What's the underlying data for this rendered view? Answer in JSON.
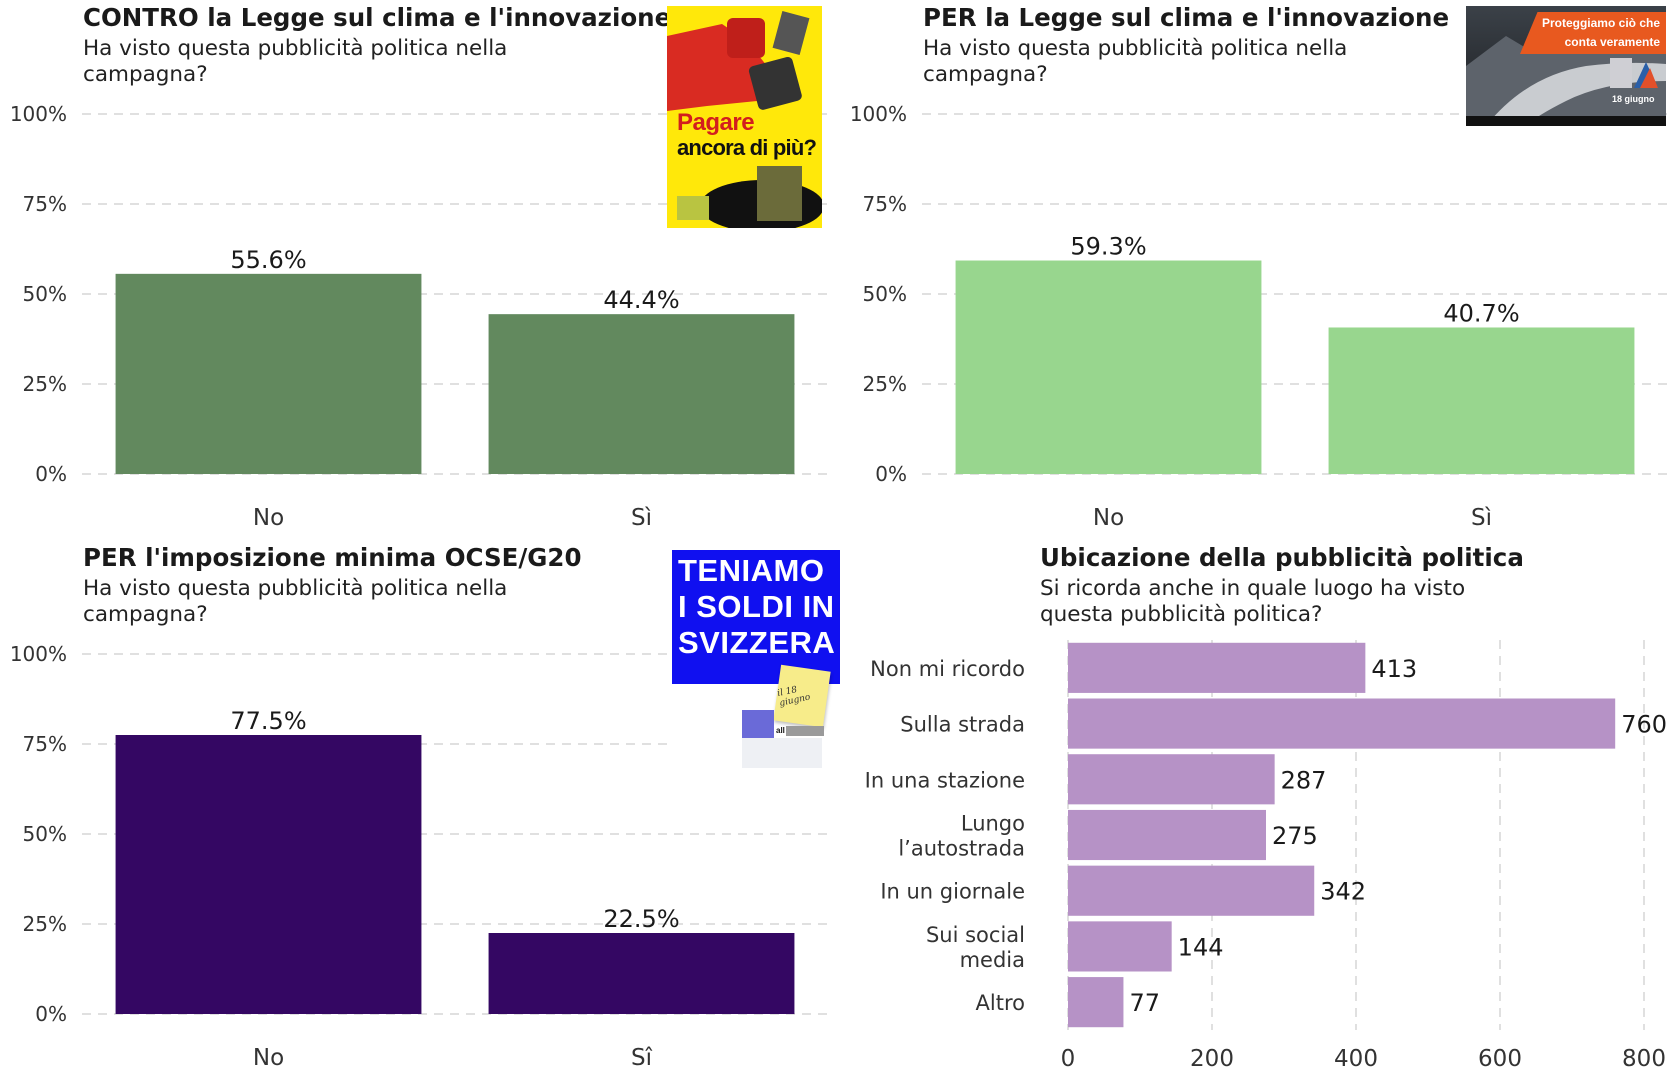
{
  "charts": [
    {
      "id": "contro",
      "title": "CONTRO la Legge sul clima e l'innovazione",
      "subtitle": "Ha visto questa pubblicità politica nella campagna?",
      "poster_text": [
        "Pagare",
        "ancora di più?"
      ],
      "color": "#62895e"
    },
    {
      "id": "per-clima",
      "title": "PER la Legge sul clima e l'innovazione",
      "subtitle": "Ha visto questa pubblicità politica nella campagna?",
      "poster_text": [
        "Proteggiamo ciò che",
        "conta veramente",
        "18 giugno"
      ],
      "color": "#98d68e"
    },
    {
      "id": "per-ocse",
      "title": "PER l'imposizione minima OCSE/G20",
      "subtitle": "Ha visto questa pubblicità politica nella campagna?",
      "poster_text": [
        "TENIAMO",
        "I SOLDI IN",
        "SVIZZERA",
        "il 18 giugno",
        "all"
      ],
      "color": "#340763"
    },
    {
      "id": "ubicazione",
      "title": "Ubicazione della pubblicità politica",
      "subtitle": "Si ricorda anche in quale luogo ha visto questa pubblicità politica?",
      "color": "#b692c6"
    }
  ],
  "chart_data": [
    {
      "type": "bar",
      "title": "CONTRO la Legge sul clima e l'innovazione",
      "categories": [
        "No",
        "Sì"
      ],
      "values": [
        55.6,
        44.4
      ],
      "value_labels": [
        "55.6%",
        "44.4%"
      ],
      "yticks": [
        "0%",
        "25%",
        "50%",
        "75%",
        "100%"
      ],
      "ylim": [
        0,
        100
      ],
      "grid": true
    },
    {
      "type": "bar",
      "title": "PER la Legge sul clima e l'innovazione",
      "categories": [
        "No",
        "Sì"
      ],
      "values": [
        59.3,
        40.7
      ],
      "value_labels": [
        "59.3%",
        "40.7%"
      ],
      "yticks": [
        "0%",
        "25%",
        "50%",
        "75%",
        "100%"
      ],
      "ylim": [
        0,
        100
      ],
      "grid": true
    },
    {
      "type": "bar",
      "title": "PER l'imposizione minima OCSE/G20",
      "categories": [
        "No",
        "Sî"
      ],
      "values": [
        77.5,
        22.5
      ],
      "value_labels": [
        "77.5%",
        "22.5%"
      ],
      "yticks": [
        "0%",
        "25%",
        "50%",
        "75%",
        "100%"
      ],
      "ylim": [
        0,
        100
      ],
      "grid": true
    },
    {
      "type": "bar",
      "orientation": "horizontal",
      "title": "Ubicazione della pubblicità politica",
      "categories": [
        "Non mi ricordo",
        "Sulla strada",
        "In una stazione",
        "Lungo l’autostrada",
        "In un giornale",
        "Sui social media",
        "Altro"
      ],
      "category_lines": [
        [
          "Non mi ricordo"
        ],
        [
          "Sulla strada"
        ],
        [
          "In una stazione"
        ],
        [
          "Lungo",
          "l’autostrada"
        ],
        [
          "In un giornale"
        ],
        [
          "Sui social",
          "media"
        ],
        [
          "Altro"
        ]
      ],
      "values": [
        413,
        760,
        287,
        275,
        342,
        144,
        77
      ],
      "value_labels": [
        "413",
        "760",
        "287",
        "275",
        "342",
        "144",
        "77"
      ],
      "xticks": [
        "0",
        "200",
        "400",
        "600",
        "800"
      ],
      "xlim": [
        0,
        800
      ],
      "grid": true
    }
  ]
}
